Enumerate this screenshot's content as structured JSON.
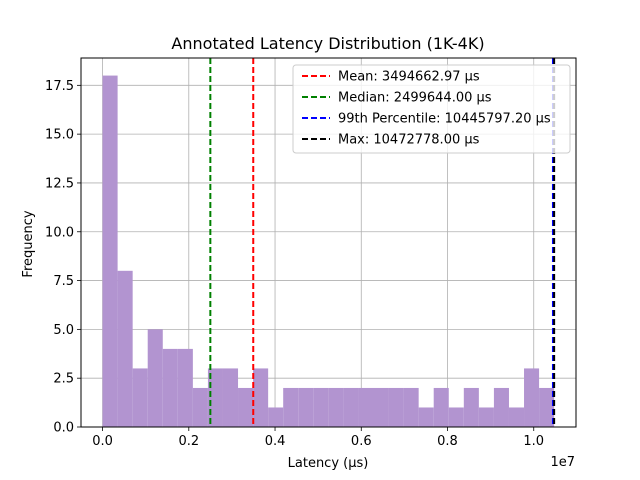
{
  "chart_data": {
    "type": "bar",
    "title": "Annotated Latency Distribution (1K-4K)",
    "xlabel": "Latency (μs)",
    "ylabel": "Frequency",
    "x_offset_label": "1e7",
    "xlim": [
      -500000,
      10980000
    ],
    "ylim": [
      0,
      18.9
    ],
    "xticks": [
      0,
      2000000,
      4000000,
      6000000,
      8000000,
      10000000
    ],
    "xtick_labels": [
      "0.0",
      "0.2",
      "0.4",
      "0.6",
      "0.8",
      "1.0"
    ],
    "yticks": [
      0,
      2.5,
      5.0,
      7.5,
      10.0,
      12.5,
      15.0,
      17.5
    ],
    "ytick_labels": [
      "0.0",
      "2.5",
      "5.0",
      "7.5",
      "10.0",
      "12.5",
      "15.0",
      "17.5"
    ],
    "grid": true,
    "bar_color": "#b294d0",
    "bin_start": 0,
    "bin_width": 349093,
    "counts": [
      18,
      8,
      3,
      5,
      4,
      4,
      2,
      3,
      3,
      2,
      3,
      1,
      2,
      2,
      2,
      2,
      2,
      2,
      2,
      2,
      2,
      1,
      2,
      1,
      2,
      1,
      2,
      1,
      3,
      2
    ],
    "lines": [
      {
        "name": "Mean: 3494662.97 μs",
        "value": 3494662.97,
        "color": "#ff0000"
      },
      {
        "name": "Median: 2499644.00 μs",
        "value": 2499644.0,
        "color": "#008000"
      },
      {
        "name": "99th Percentile: 10445797.20 μs",
        "value": 10445797.2,
        "color": "#0000ff"
      },
      {
        "name": "Max: 10472778.00 μs",
        "value": 10472778.0,
        "color": "#000000"
      }
    ],
    "legend_position": "top-right"
  }
}
